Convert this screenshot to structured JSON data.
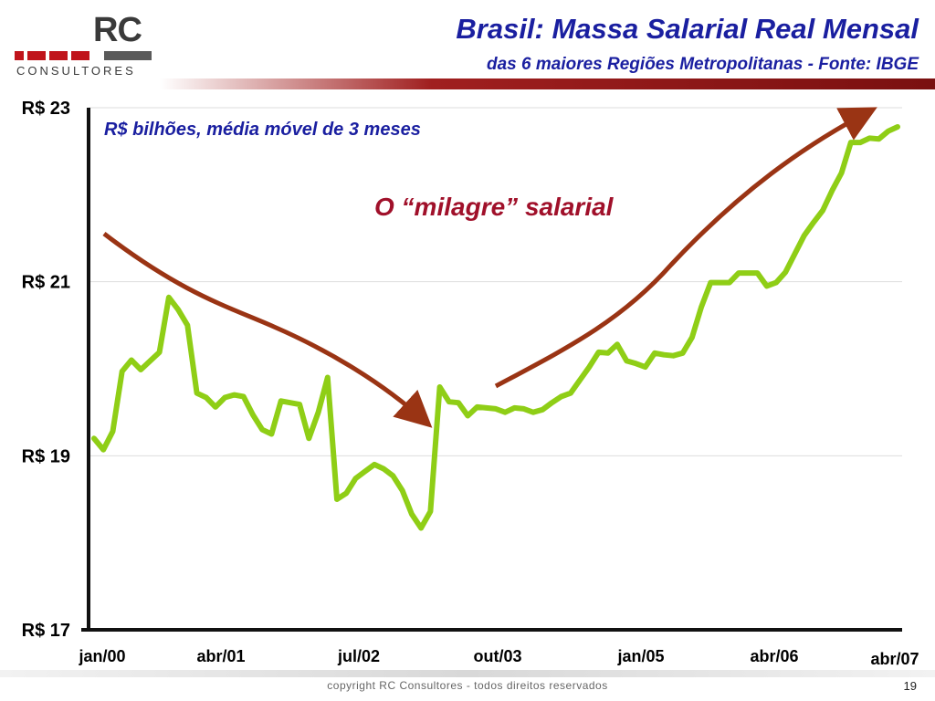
{
  "logo": {
    "text": "RC",
    "subtext": "CONSULTORES"
  },
  "header": {
    "title": "Brasil: Massa Salarial Real Mensal",
    "subtitle": "das 6 maiores Regiões Metropolitanas - Fonte: IBGE"
  },
  "colors": {
    "line": "#8fce16",
    "arrow": "#9a3414",
    "accent": "#1a1fa0",
    "annotation": "#a0102a"
  },
  "chart_data": {
    "type": "line",
    "note": "R$ bilhões, média móvel de 3 meses",
    "annotation": "O “milagre” salarial",
    "ylim": [
      17,
      23
    ],
    "y_ticks": [
      {
        "value": 17,
        "label": "R$ 17"
      },
      {
        "value": 19,
        "label": "R$ 19"
      },
      {
        "value": 21,
        "label": "R$ 21"
      },
      {
        "value": 23,
        "label": "R$ 23"
      }
    ],
    "x_ticks": [
      "jan/00",
      "abr/01",
      "jul/02",
      "out/03",
      "jan/05",
      "abr/06",
      "abr/07"
    ],
    "grid": true,
    "series": [
      {
        "values": [
          19.2,
          19.07,
          19.28,
          19.97,
          20.1,
          19.99,
          20.09,
          20.19,
          20.82,
          20.68,
          20.5,
          19.72,
          19.67,
          19.56,
          19.67,
          19.7,
          19.68,
          19.47,
          19.3,
          19.25,
          19.63,
          19.61,
          19.59,
          19.2,
          19.5,
          19.9,
          18.5,
          18.57,
          18.74,
          18.82,
          18.9,
          18.85,
          18.77,
          18.6,
          18.33,
          18.17,
          18.36,
          19.79,
          19.62,
          19.61,
          19.46,
          19.56,
          19.55,
          19.54,
          19.5,
          19.55,
          19.54,
          19.5,
          19.53,
          19.61,
          19.68,
          19.72,
          19.87,
          20.02,
          20.19,
          20.18,
          20.28,
          20.09,
          20.06,
          20.02,
          20.18,
          20.16,
          20.15,
          20.18,
          20.36,
          20.71,
          20.99,
          20.99,
          20.99,
          21.1,
          21.1,
          21.1,
          20.95,
          20.99,
          21.11,
          21.32,
          21.53,
          21.68,
          21.82,
          22.05,
          22.25,
          22.6,
          22.6,
          22.65,
          22.64,
          22.73,
          22.78
        ]
      }
    ]
  },
  "footer": {
    "copyright": "copyright RC Consultores - todos direitos reservados",
    "page": "19"
  }
}
